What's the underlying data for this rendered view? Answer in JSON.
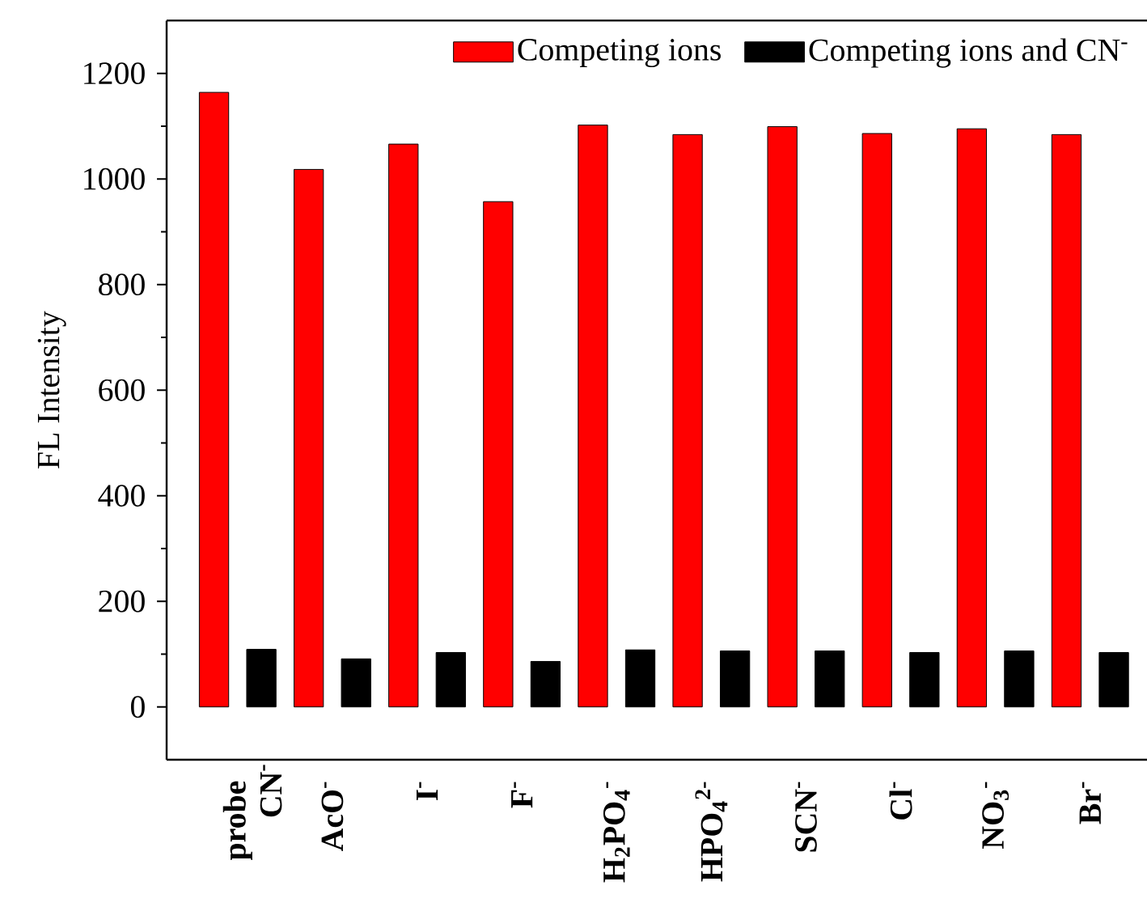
{
  "chart_data": {
    "type": "bar",
    "ylabel": "FL Intensity",
    "categories": [
      "probe",
      "AcO$^{-}$",
      "I$^{-}$",
      "F$^{-}$",
      "H$_{2}$PO$_{4}$$^{-}$",
      "HPO$_{4}$$^{2-}$",
      "SCN$^{-}$",
      "Cl$^{-}$",
      "NO$_{3}$$^{-}$",
      "Br$^{-}$"
    ],
    "series": [
      {
        "name": "Competing ions",
        "color": "#ff0000",
        "values": [
          1164,
          1018,
          1066,
          957,
          1102,
          1084,
          1099,
          1086,
          1095,
          1084
        ]
      },
      {
        "name": "Competing ions and CN$^{-}$",
        "color": "#000000",
        "values": [
          109,
          91,
          103,
          86,
          108,
          106,
          106,
          103,
          106,
          103
        ]
      }
    ],
    "ylim": [
      -100,
      1300
    ],
    "yticks": [
      0,
      200,
      400,
      600,
      800,
      1000,
      1200
    ],
    "legend": "top right",
    "annotations": [
      "CN$^{-}$"
    ]
  }
}
